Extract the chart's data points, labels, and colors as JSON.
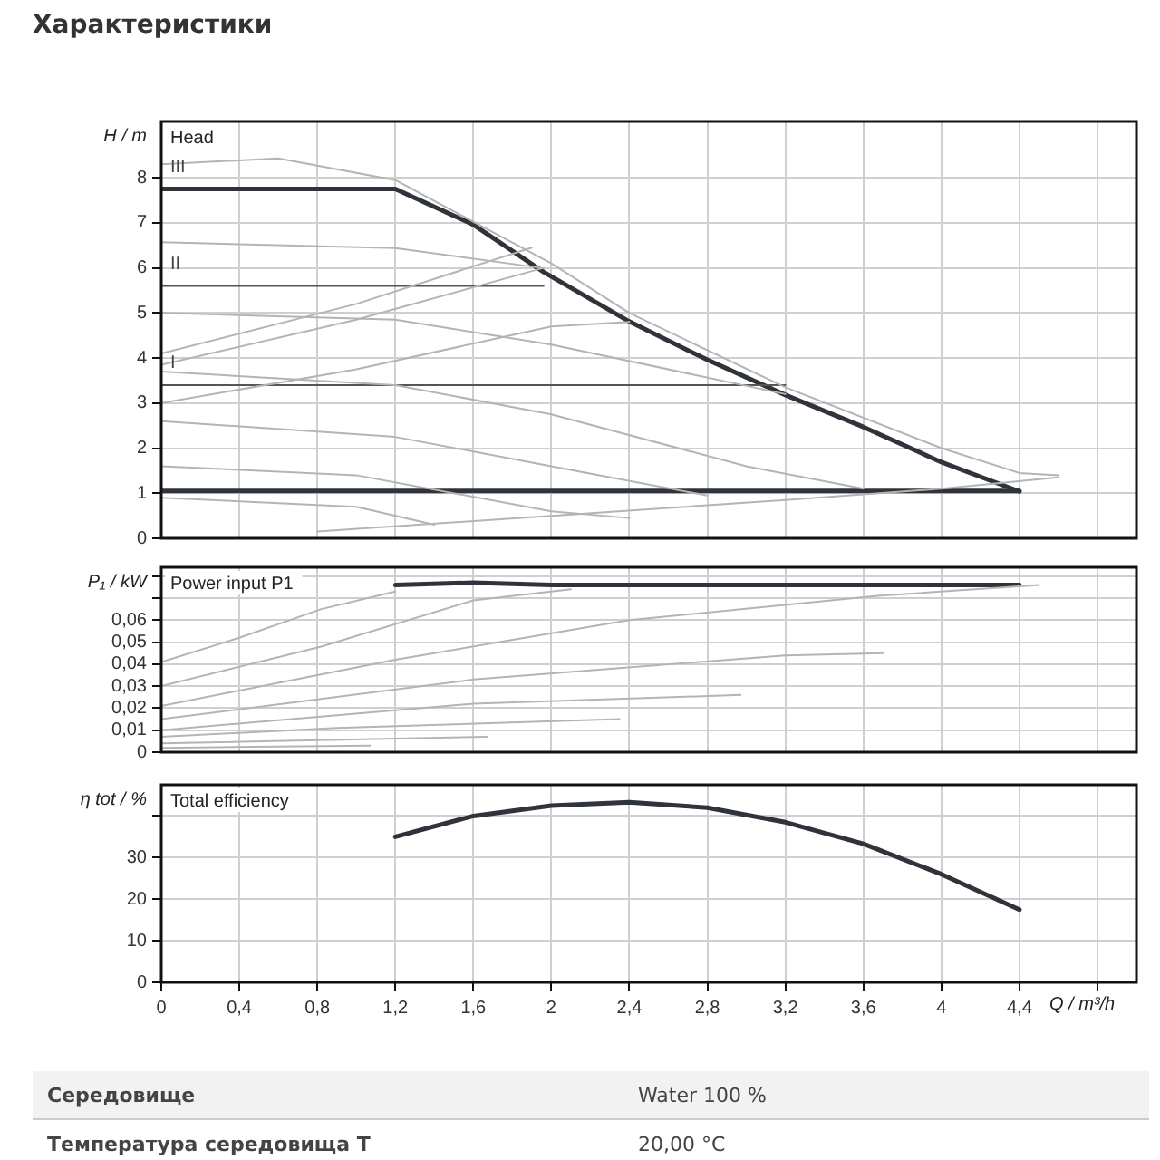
{
  "chart_data": [
    {
      "type": "line",
      "title": "Характеристики",
      "subtitle": "Head",
      "ylabel": "H / m",
      "xlim": [
        0,
        5
      ],
      "ylim": [
        0,
        9.25
      ],
      "xticks": [
        0,
        0.4,
        0.8,
        1.2,
        1.6,
        2,
        2.4,
        2.8,
        3.2,
        3.6,
        4,
        4.4,
        4.8
      ],
      "yticks": [
        0,
        1,
        2,
        3,
        4,
        5,
        6,
        7,
        8
      ],
      "tick_labels": "y",
      "grid": true,
      "legend": false,
      "marker": "none",
      "annotations": [
        "III",
        "II",
        "I"
      ],
      "series": [
        {
          "color": "#b4b4b4",
          "x": [
            0,
            0.6,
            1.2,
            2.0,
            2.4,
            3.2,
            4.0,
            4.4,
            4.6
          ],
          "values": [
            8.3,
            8.43,
            7.95,
            6.1,
            5.0,
            3.35,
            2.0,
            1.45,
            1.4
          ]
        },
        {
          "color": "#b4b4b4",
          "x": [
            0,
            1.2,
            1.95
          ],
          "values": [
            6.57,
            6.44,
            6.0
          ]
        },
        {
          "color": "#b4b4b4",
          "x": [
            0,
            1.2,
            2.0,
            3.2
          ],
          "values": [
            5.0,
            4.85,
            4.3,
            3.2
          ]
        },
        {
          "color": "#b4b4b4",
          "x": [
            0,
            1.2,
            2.0,
            3.0,
            3.6
          ],
          "values": [
            3.7,
            3.4,
            2.75,
            1.6,
            1.1
          ]
        },
        {
          "color": "#b4b4b4",
          "x": [
            0,
            1.2,
            2.0,
            2.8
          ],
          "values": [
            2.6,
            2.25,
            1.6,
            0.95
          ]
        },
        {
          "color": "#b4b4b4",
          "x": [
            0,
            1.0,
            2.0,
            2.4
          ],
          "values": [
            1.6,
            1.4,
            0.6,
            0.45
          ]
        },
        {
          "color": "#b4b4b4",
          "x": [
            0,
            1.0,
            1.4
          ],
          "values": [
            0.9,
            0.7,
            0.3
          ]
        },
        {
          "color": "#b4b4b4",
          "x": [
            0,
            1.0,
            1.9
          ],
          "values": [
            4.1,
            5.2,
            6.45
          ]
        },
        {
          "color": "#b4b4b4",
          "x": [
            0,
            1.0,
            1.96
          ],
          "values": [
            3.85,
            4.85,
            6.0
          ]
        },
        {
          "color": "#b4b4b4",
          "x": [
            0,
            1.0,
            2.0,
            2.4
          ],
          "values": [
            3.0,
            3.75,
            4.7,
            4.8
          ]
        },
        {
          "color": "#b4b4b4",
          "x": [
            0.8,
            2.0,
            3.2,
            4.0,
            4.6
          ],
          "values": [
            0.15,
            0.5,
            0.85,
            1.1,
            1.35
          ]
        },
        {
          "color": "#555555",
          "x": [
            0,
            1.96
          ],
          "values": [
            5.6,
            5.6
          ]
        },
        {
          "color": "#555555",
          "x": [
            0,
            3.2
          ],
          "values": [
            3.4,
            3.4
          ]
        },
        {
          "color": "#2f343b",
          "x": [
            0,
            4.4
          ],
          "values": [
            1.05,
            1.05
          ]
        },
        {
          "color": "#2f343b",
          "x": [
            0,
            1.2,
            1.6,
            1.96,
            2.4,
            2.8,
            3.2,
            3.6,
            4.0,
            4.4
          ],
          "values": [
            7.75,
            7.75,
            6.96,
            5.91,
            4.81,
            3.96,
            3.18,
            2.47,
            1.69,
            1.04
          ]
        }
      ]
    },
    {
      "type": "line",
      "title": "Power input P1",
      "ylabel": "P₁ / kW",
      "xlim": [
        0,
        5
      ],
      "ylim": [
        0,
        0.084
      ],
      "xticks": [
        0,
        0.4,
        0.8,
        1.2,
        1.6,
        2,
        2.4,
        2.8,
        3.2,
        3.6,
        4,
        4.4,
        4.8
      ],
      "yticks": [
        0,
        {
          "value": 0.01,
          "label": "0,01"
        },
        {
          "value": 0.02,
          "label": "0,02"
        },
        {
          "value": 0.03,
          "label": "0,03"
        },
        {
          "value": 0.04,
          "label": "0,04"
        },
        {
          "value": 0.05,
          "label": "0,05"
        },
        {
          "value": 0.06,
          "label": "0,06"
        },
        {
          "value": 0.07,
          "label": null
        },
        {
          "value": 0.08,
          "label": null
        }
      ],
      "tick_labels": "y",
      "grid": true,
      "legend": false,
      "marker": "none",
      "series": [
        {
          "color": "#b4b4b4",
          "x": [
            0,
            0.4,
            0.82,
            1.2
          ],
          "values": [
            0.041,
            0.052,
            0.065,
            0.073
          ]
        },
        {
          "color": "#b4b4b4",
          "x": [
            0,
            0.82,
            1.6,
            2.1
          ],
          "values": [
            0.03,
            0.048,
            0.069,
            0.074
          ]
        },
        {
          "color": "#b4b4b4",
          "x": [
            0,
            1.2,
            2.4,
            3.67,
            4.5
          ],
          "values": [
            0.021,
            0.042,
            0.06,
            0.071,
            0.076
          ]
        },
        {
          "color": "#b4b4b4",
          "x": [
            0,
            1.6,
            3.2,
            3.7
          ],
          "values": [
            0.015,
            0.033,
            0.044,
            0.045
          ]
        },
        {
          "color": "#b4b4b4",
          "x": [
            0,
            1.6,
            2.97
          ],
          "values": [
            0.01,
            0.022,
            0.026
          ]
        },
        {
          "color": "#b4b4b4",
          "x": [
            0,
            0.9,
            2.35
          ],
          "values": [
            0.007,
            0.011,
            0.015
          ]
        },
        {
          "color": "#b4b4b4",
          "x": [
            0,
            1.67
          ],
          "values": [
            0.004,
            0.007
          ]
        },
        {
          "color": "#b4b4b4",
          "x": [
            0,
            1.07
          ],
          "values": [
            0.002,
            0.003
          ]
        },
        {
          "color": "#2f343b",
          "x": [
            1.2,
            1.6,
            2.0,
            2.4,
            2.8,
            3.2,
            3.6,
            4.0,
            4.4
          ],
          "values": [
            0.076,
            0.077,
            0.076,
            0.076,
            0.076,
            0.076,
            0.076,
            0.076,
            0.076
          ]
        }
      ]
    },
    {
      "type": "line",
      "title": "Total efficiency",
      "ylabel": "η tot / %",
      "xlabel": "Q / m³/h",
      "xlim": [
        0,
        5
      ],
      "ylim": [
        0,
        47.5
      ],
      "xticks": [
        0,
        {
          "value": 0.4,
          "label": "0,4"
        },
        {
          "value": 0.8,
          "label": "0,8"
        },
        {
          "value": 1.2,
          "label": "1,2"
        },
        {
          "value": 1.6,
          "label": "1,6"
        },
        2,
        {
          "value": 2.4,
          "label": "2,4"
        },
        {
          "value": 2.8,
          "label": "2,8"
        },
        {
          "value": 3.2,
          "label": "3,2"
        },
        {
          "value": 3.6,
          "label": "3,6"
        },
        4,
        {
          "value": 4.4,
          "label": "4,4"
        },
        {
          "value": 4.8,
          "label": null
        }
      ],
      "yticks": [
        0,
        10,
        20,
        30,
        {
          "value": 40,
          "label": null
        }
      ],
      "grid": true,
      "legend": false,
      "marker": "none",
      "series": [
        {
          "color": "#2f343b",
          "x": [
            1.2,
            1.6,
            2.0,
            2.4,
            2.8,
            3.2,
            3.6,
            4.0,
            4.4
          ],
          "values": [
            35,
            40,
            42.5,
            43.3,
            42,
            38.5,
            33.3,
            26,
            17.5
          ]
        }
      ]
    },
    {
      "type": "other",
      "annotations": [
        "Середовище",
        "Water 100 %",
        "Температура середовища T",
        "20,00 °C"
      ]
    }
  ]
}
